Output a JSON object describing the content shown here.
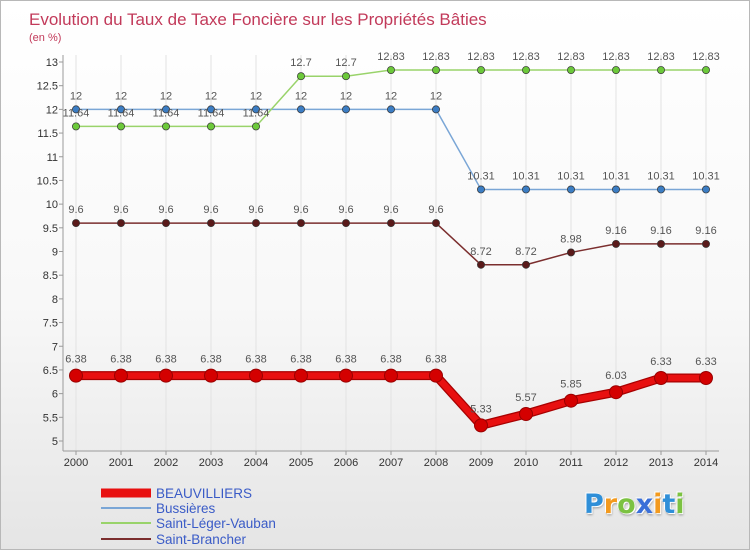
{
  "chart_data": {
    "type": "line",
    "title": "Evolution du Taux de Taxe Foncière sur les Propriétés Bâties",
    "subtitle": "(en %)",
    "x": [
      2000,
      2001,
      2002,
      2003,
      2004,
      2005,
      2006,
      2007,
      2008,
      2009,
      2010,
      2011,
      2012,
      2013,
      2014
    ],
    "ylim": [
      5,
      13
    ],
    "yticks": [
      5,
      5.5,
      6,
      6.5,
      7,
      7.5,
      8,
      8.5,
      9,
      9.5,
      10,
      10.5,
      11,
      11.5,
      12,
      12.5,
      13
    ],
    "grid": {
      "vertical": true,
      "horizontal": false
    },
    "legend": "bottom-left",
    "series": [
      {
        "name": "BEAUVILLIERS",
        "color": "#e81010",
        "marker_color": "#d40000",
        "values": [
          6.38,
          6.38,
          6.38,
          6.38,
          6.38,
          6.38,
          6.38,
          6.38,
          6.38,
          5.33,
          5.57,
          5.85,
          6.03,
          6.33,
          6.33
        ]
      },
      {
        "name": "Bussières",
        "color": "#7aa6d6",
        "marker_color": "#3b7dc4",
        "values": [
          12,
          12,
          12,
          12,
          12,
          12,
          12,
          12,
          12,
          10.31,
          10.31,
          10.31,
          10.31,
          10.31,
          10.31
        ]
      },
      {
        "name": "Saint-Léger-Vauban",
        "color": "#99d36a",
        "marker_color": "#6cc93a",
        "values": [
          11.64,
          11.64,
          11.64,
          11.64,
          11.64,
          12.7,
          12.7,
          12.83,
          12.83,
          12.83,
          12.83,
          12.83,
          12.83,
          12.83,
          12.83
        ]
      },
      {
        "name": "Saint-Brancher",
        "color": "#7b2e2e",
        "marker_color": "#5a1a1a",
        "values": [
          9.6,
          9.6,
          9.6,
          9.6,
          9.6,
          9.6,
          9.6,
          9.6,
          9.6,
          8.72,
          8.72,
          8.98,
          9.16,
          9.16,
          9.16
        ]
      }
    ]
  },
  "logo": {
    "text": "Proxiti",
    "colors": [
      "#2f8fd8",
      "#f39a1e",
      "#7cc242",
      "#3a6fd8",
      "#f39a1e",
      "#2f8fd8",
      "#7cc242"
    ]
  }
}
